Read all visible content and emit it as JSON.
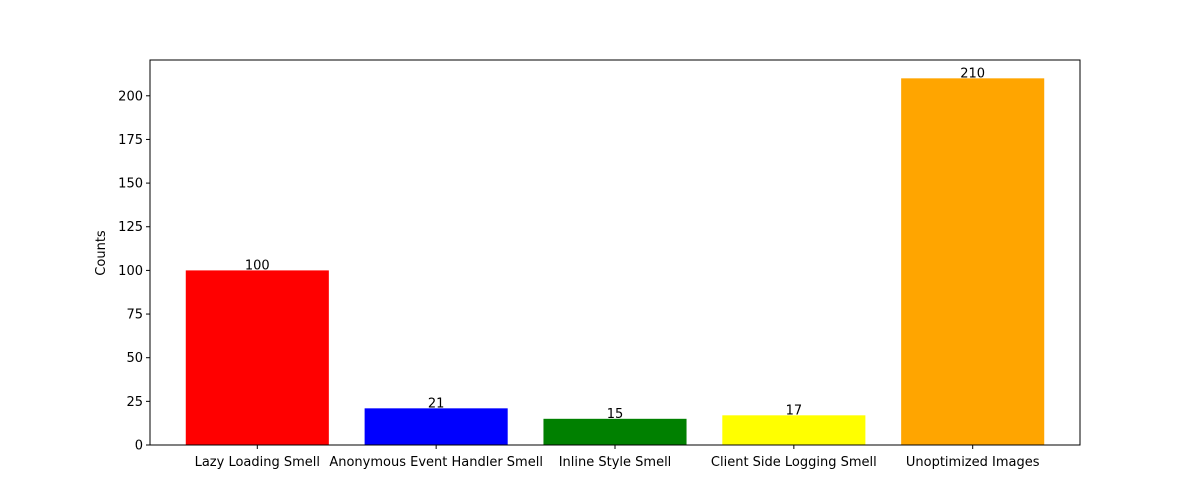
{
  "chart_data": {
    "type": "bar",
    "title": "",
    "xlabel": "",
    "ylabel": "Counts",
    "categories": [
      "Lazy Loading Smell",
      "Anonymous Event Handler Smell",
      "Inline Style Smell",
      "Client Side Logging Smell",
      "Unoptimized Images"
    ],
    "values": [
      100,
      21,
      15,
      17,
      210
    ],
    "colors": [
      "#ff0000",
      "#0000ff",
      "#008000",
      "#ffff00",
      "#ffa500"
    ],
    "ylim": [
      0,
      220.5
    ],
    "yticks": [
      0,
      25,
      50,
      75,
      100,
      125,
      150,
      175,
      200
    ],
    "grid": false,
    "legend": "none"
  }
}
